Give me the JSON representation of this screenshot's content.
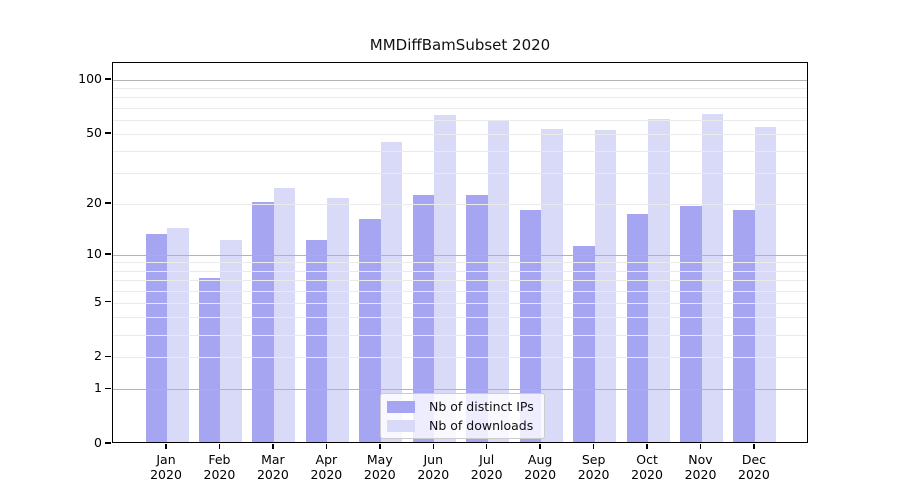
{
  "title": "MMDiffBamSubset 2020",
  "colors": {
    "ips_bar": "#a5a5f2",
    "downloads_bar": "#d9d9f8",
    "grid_major": "#b3b3b3",
    "grid_minor": "#eaeaea",
    "axis": "#000000"
  },
  "legend": {
    "items": [
      {
        "label": "Nb of distinct IPs",
        "swatch": "ips_bar"
      },
      {
        "label": "Nb of downloads",
        "swatch": "downloads_bar"
      }
    ]
  },
  "chart_data": {
    "type": "bar",
    "title": "MMDiffBamSubset 2020",
    "xlabel": "",
    "ylabel": "",
    "scale": "log1p",
    "categories": [
      "Jan",
      "Feb",
      "Mar",
      "Apr",
      "May",
      "Jun",
      "Jul",
      "Aug",
      "Sep",
      "Oct",
      "Nov",
      "Dec"
    ],
    "year_label": "2020",
    "series": [
      {
        "name": "Nb of distinct IPs",
        "values": [
          13,
          7,
          20,
          12,
          16,
          22,
          22,
          18,
          11,
          17,
          19,
          18
        ]
      },
      {
        "name": "Nb of downloads",
        "values": [
          14,
          12,
          24,
          21,
          44,
          62,
          58,
          52,
          51,
          59,
          63,
          53
        ]
      }
    ],
    "yticks": [
      0,
      1,
      2,
      5,
      10,
      20,
      50,
      100
    ],
    "grid_major_values": [
      1,
      10,
      100
    ],
    "grid_minor_values": [
      2,
      3,
      4,
      5,
      6,
      7,
      8,
      9,
      20,
      30,
      40,
      50,
      60,
      70,
      80,
      90
    ],
    "ylim": [
      0,
      124
    ],
    "grid": true,
    "legend_position": "lower center"
  }
}
